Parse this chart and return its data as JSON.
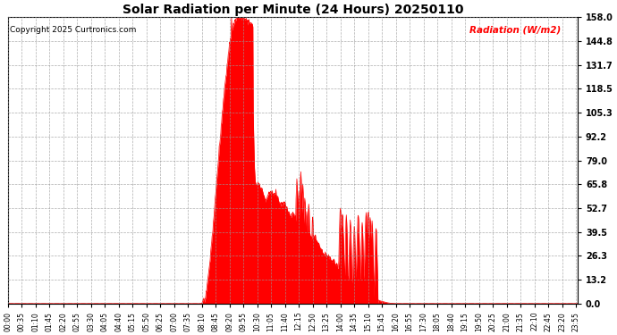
{
  "title": "Solar Radiation per Minute (24 Hours) 20250110",
  "copyright_text": "Copyright 2025 Curtronics.com",
  "legend_text": "Radiation (W/m2)",
  "ylabel_color": "#FF0000",
  "bar_color": "#FF0000",
  "background_color": "#FFFFFF",
  "grid_color": "#AAAAAA",
  "ytick_values": [
    0.0,
    13.2,
    26.3,
    39.5,
    52.7,
    65.8,
    79.0,
    92.2,
    105.3,
    118.5,
    131.7,
    144.8,
    158.0
  ],
  "ymax": 158.0,
  "ymin": 0.0,
  "total_minutes": 1440,
  "xtick_interval": 35,
  "xtick_labels": [
    "00:00",
    "00:35",
    "01:10",
    "01:45",
    "02:20",
    "02:55",
    "03:30",
    "04:05",
    "04:40",
    "05:15",
    "05:50",
    "06:25",
    "07:00",
    "07:35",
    "08:10",
    "08:45",
    "09:20",
    "09:55",
    "10:30",
    "11:05",
    "11:40",
    "12:15",
    "12:50",
    "13:25",
    "14:00",
    "14:35",
    "15:10",
    "15:45",
    "16:20",
    "16:55",
    "17:30",
    "18:05",
    "18:40",
    "19:15",
    "19:50",
    "20:25",
    "21:00",
    "21:35",
    "22:10",
    "22:45",
    "23:20",
    "23:55"
  ]
}
